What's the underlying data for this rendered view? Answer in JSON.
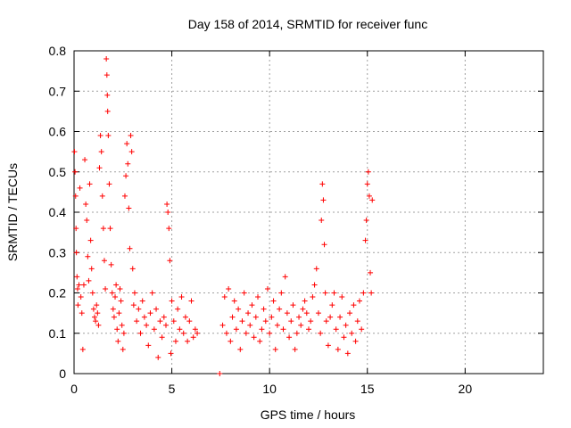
{
  "chart_data": {
    "type": "scatter",
    "title": "Day 158 of 2014, SRMTID for receiver func",
    "xlabel": "GPS time / hours",
    "ylabel": "SRMTID / TECUs",
    "xlim": [
      0,
      24
    ],
    "ylim": [
      0,
      0.8
    ],
    "xticks": [
      0,
      5,
      10,
      15,
      20
    ],
    "yticks": [
      0,
      0.1,
      0.2,
      0.3,
      0.4,
      0.5,
      0.6,
      0.7,
      0.8
    ],
    "grid": true,
    "marker": "+",
    "color": "#ff0000",
    "series": [
      {
        "name": "SRMTID",
        "points": [
          [
            0.02,
            0.55
          ],
          [
            0.05,
            0.5
          ],
          [
            0.08,
            0.44
          ],
          [
            0.1,
            0.36
          ],
          [
            0.12,
            0.3
          ],
          [
            0.15,
            0.24
          ],
          [
            0.18,
            0.21
          ],
          [
            0.2,
            0.17
          ],
          [
            0.25,
            0.22
          ],
          [
            0.3,
            0.46
          ],
          [
            0.35,
            0.19
          ],
          [
            0.4,
            0.15
          ],
          [
            0.45,
            0.06
          ],
          [
            0.5,
            0.22
          ],
          [
            0.55,
            0.53
          ],
          [
            0.6,
            0.42
          ],
          [
            0.65,
            0.38
          ],
          [
            0.7,
            0.29
          ],
          [
            0.75,
            0.23
          ],
          [
            0.8,
            0.47
          ],
          [
            0.85,
            0.33
          ],
          [
            0.9,
            0.26
          ],
          [
            0.95,
            0.2
          ],
          [
            1.0,
            0.16
          ],
          [
            1.05,
            0.14
          ],
          [
            1.1,
            0.13
          ],
          [
            1.15,
            0.17
          ],
          [
            1.2,
            0.15
          ],
          [
            1.25,
            0.12
          ],
          [
            1.3,
            0.51
          ],
          [
            1.35,
            0.59
          ],
          [
            1.4,
            0.55
          ],
          [
            1.45,
            0.44
          ],
          [
            1.5,
            0.36
          ],
          [
            1.55,
            0.28
          ],
          [
            1.6,
            0.21
          ],
          [
            1.65,
            0.78
          ],
          [
            1.68,
            0.74
          ],
          [
            1.7,
            0.69
          ],
          [
            1.72,
            0.65
          ],
          [
            1.75,
            0.59
          ],
          [
            1.8,
            0.47
          ],
          [
            1.85,
            0.36
          ],
          [
            1.9,
            0.27
          ],
          [
            1.95,
            0.2
          ],
          [
            2.0,
            0.16
          ],
          [
            2.05,
            0.14
          ],
          [
            2.1,
            0.19
          ],
          [
            2.15,
            0.22
          ],
          [
            2.2,
            0.11
          ],
          [
            2.25,
            0.08
          ],
          [
            2.3,
            0.15
          ],
          [
            2.35,
            0.21
          ],
          [
            2.4,
            0.18
          ],
          [
            2.45,
            0.12
          ],
          [
            2.5,
            0.06
          ],
          [
            2.55,
            0.1
          ],
          [
            2.6,
            0.44
          ],
          [
            2.65,
            0.49
          ],
          [
            2.7,
            0.57
          ],
          [
            2.75,
            0.52
          ],
          [
            2.8,
            0.41
          ],
          [
            2.85,
            0.31
          ],
          [
            2.9,
            0.59
          ],
          [
            2.95,
            0.55
          ],
          [
            3.0,
            0.26
          ],
          [
            3.05,
            0.17
          ],
          [
            3.1,
            0.2
          ],
          [
            3.2,
            0.13
          ],
          [
            3.3,
            0.16
          ],
          [
            3.4,
            0.1
          ],
          [
            3.5,
            0.18
          ],
          [
            3.6,
            0.14
          ],
          [
            3.7,
            0.12
          ],
          [
            3.8,
            0.07
          ],
          [
            3.9,
            0.15
          ],
          [
            4.0,
            0.2
          ],
          [
            4.1,
            0.11
          ],
          [
            4.2,
            0.16
          ],
          [
            4.3,
            0.04
          ],
          [
            4.4,
            0.13
          ],
          [
            4.5,
            0.09
          ],
          [
            4.6,
            0.14
          ],
          [
            4.7,
            0.12
          ],
          [
            4.75,
            0.42
          ],
          [
            4.8,
            0.4
          ],
          [
            4.85,
            0.36
          ],
          [
            4.9,
            0.28
          ],
          [
            4.95,
            0.05
          ],
          [
            5.0,
            0.18
          ],
          [
            5.1,
            0.13
          ],
          [
            5.2,
            0.08
          ],
          [
            5.3,
            0.16
          ],
          [
            5.4,
            0.11
          ],
          [
            5.5,
            0.19
          ],
          [
            5.6,
            0.1
          ],
          [
            5.7,
            0.14
          ],
          [
            5.8,
            0.08
          ],
          [
            5.9,
            0.13
          ],
          [
            6.0,
            0.18
          ],
          [
            6.1,
            0.09
          ],
          [
            6.2,
            0.11
          ],
          [
            6.3,
            0.1
          ],
          [
            7.45,
            0.0
          ],
          [
            7.6,
            0.12
          ],
          [
            7.7,
            0.19
          ],
          [
            7.8,
            0.1
          ],
          [
            7.9,
            0.21
          ],
          [
            8.0,
            0.08
          ],
          [
            8.1,
            0.14
          ],
          [
            8.2,
            0.18
          ],
          [
            8.3,
            0.11
          ],
          [
            8.4,
            0.16
          ],
          [
            8.5,
            0.06
          ],
          [
            8.6,
            0.13
          ],
          [
            8.7,
            0.2
          ],
          [
            8.8,
            0.1
          ],
          [
            8.9,
            0.15
          ],
          [
            9.0,
            0.12
          ],
          [
            9.1,
            0.17
          ],
          [
            9.2,
            0.09
          ],
          [
            9.3,
            0.14
          ],
          [
            9.4,
            0.19
          ],
          [
            9.5,
            0.08
          ],
          [
            9.6,
            0.11
          ],
          [
            9.7,
            0.16
          ],
          [
            9.8,
            0.13
          ],
          [
            9.9,
            0.21
          ],
          [
            10.0,
            0.1
          ],
          [
            10.1,
            0.14
          ],
          [
            10.2,
            0.18
          ],
          [
            10.3,
            0.06
          ],
          [
            10.4,
            0.12
          ],
          [
            10.5,
            0.16
          ],
          [
            10.6,
            0.2
          ],
          [
            10.7,
            0.11
          ],
          [
            10.8,
            0.24
          ],
          [
            10.9,
            0.15
          ],
          [
            11.0,
            0.09
          ],
          [
            11.1,
            0.13
          ],
          [
            11.2,
            0.17
          ],
          [
            11.3,
            0.06
          ],
          [
            11.4,
            0.1
          ],
          [
            11.5,
            0.14
          ],
          [
            11.6,
            0.12
          ],
          [
            11.7,
            0.16
          ],
          [
            11.8,
            0.18
          ],
          [
            11.9,
            0.15
          ],
          [
            12.0,
            0.11
          ],
          [
            12.1,
            0.13
          ],
          [
            12.2,
            0.19
          ],
          [
            12.3,
            0.22
          ],
          [
            12.4,
            0.26
          ],
          [
            12.5,
            0.15
          ],
          [
            12.6,
            0.1
          ],
          [
            12.65,
            0.38
          ],
          [
            12.7,
            0.47
          ],
          [
            12.75,
            0.43
          ],
          [
            12.8,
            0.32
          ],
          [
            12.85,
            0.2
          ],
          [
            12.9,
            0.13
          ],
          [
            13.0,
            0.07
          ],
          [
            13.1,
            0.14
          ],
          [
            13.2,
            0.17
          ],
          [
            13.3,
            0.2
          ],
          [
            13.4,
            0.11
          ],
          [
            13.5,
            0.06
          ],
          [
            13.6,
            0.14
          ],
          [
            13.7,
            0.19
          ],
          [
            13.8,
            0.09
          ],
          [
            13.9,
            0.12
          ],
          [
            14.0,
            0.05
          ],
          [
            14.1,
            0.15
          ],
          [
            14.2,
            0.1
          ],
          [
            14.3,
            0.17
          ],
          [
            14.4,
            0.08
          ],
          [
            14.5,
            0.13
          ],
          [
            14.6,
            0.18
          ],
          [
            14.7,
            0.11
          ],
          [
            14.8,
            0.2
          ],
          [
            14.9,
            0.33
          ],
          [
            14.95,
            0.38
          ],
          [
            15.0,
            0.47
          ],
          [
            15.05,
            0.5
          ],
          [
            15.1,
            0.44
          ],
          [
            15.15,
            0.25
          ],
          [
            15.2,
            0.2
          ],
          [
            15.25,
            0.43
          ]
        ]
      }
    ]
  }
}
